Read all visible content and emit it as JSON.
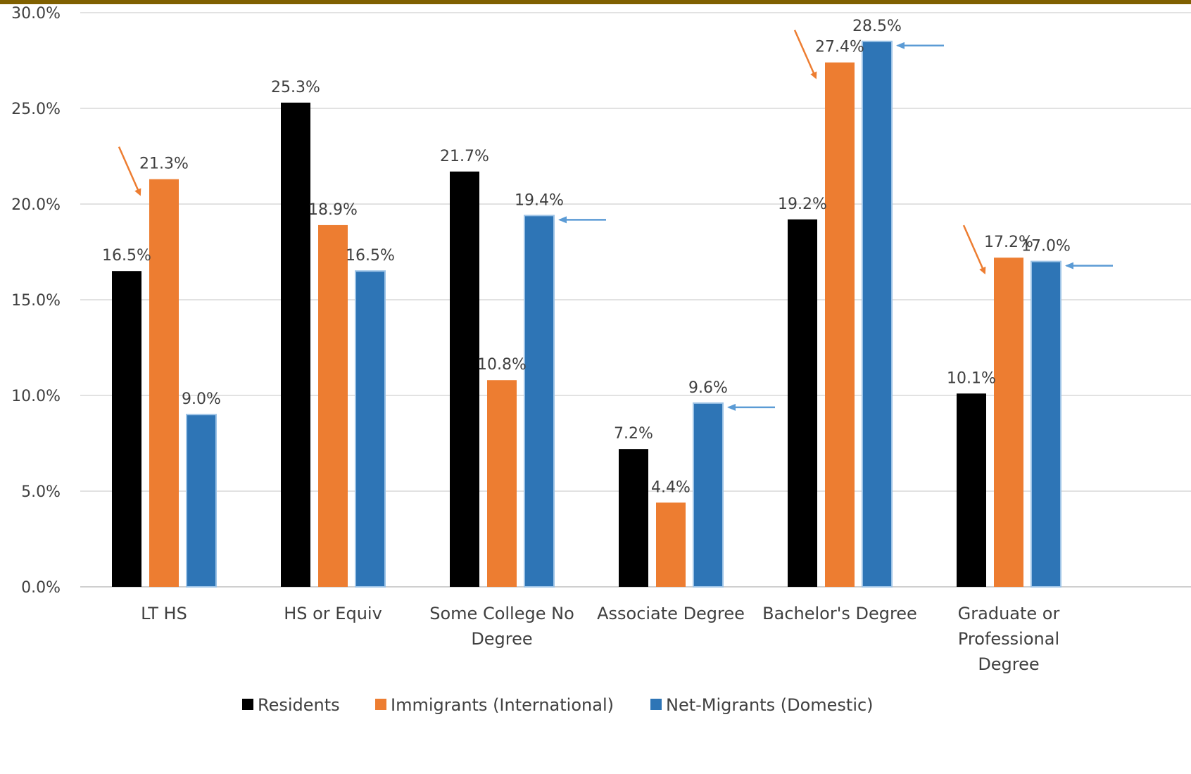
{
  "chart_data": {
    "type": "bar",
    "title": "",
    "xlabel": "",
    "ylabel": "",
    "ylim": [
      0,
      30
    ],
    "y_ticks": [
      "0.0%",
      "5.0%",
      "10.0%",
      "15.0%",
      "20.0%",
      "25.0%",
      "30.0%"
    ],
    "grid": true,
    "legend_position": "bottom",
    "categories": [
      [
        "LT HS"
      ],
      [
        "HS or Equiv"
      ],
      [
        "Some College No",
        "Degree"
      ],
      [
        "Associate Degree"
      ],
      [
        "Bachelor's Degree"
      ],
      [
        "Graduate or",
        "Professional",
        "Degree"
      ]
    ],
    "series": [
      {
        "name": "Residents",
        "color": "#000000",
        "values": [
          16.5,
          25.3,
          21.7,
          7.2,
          19.2,
          10.1
        ],
        "labels": [
          "16.5%",
          "25.3%",
          "21.7%",
          "7.2%",
          "19.2%",
          "10.1%"
        ]
      },
      {
        "name": "Immigrants (International)",
        "color": "#ED7D31",
        "values": [
          21.3,
          18.9,
          10.8,
          4.4,
          27.4,
          17.2
        ],
        "labels": [
          "21.3%",
          "18.9%",
          "10.8%",
          "4.4%",
          "27.4%",
          "17.2%"
        ]
      },
      {
        "name": "Net-Migrants (Domestic)",
        "color": "#2E75B6",
        "values": [
          9.0,
          16.5,
          19.4,
          9.6,
          28.5,
          17.0
        ],
        "labels": [
          "9.0%",
          "16.5%",
          "19.4%",
          "9.6%",
          "28.5%",
          "17.0%"
        ]
      }
    ],
    "annotations": [
      {
        "type": "arrow",
        "color": "#ED7D31",
        "direction": "down-right",
        "target_series": 1,
        "target_category": 0
      },
      {
        "type": "arrow",
        "color": "#ED7D31",
        "direction": "down-right",
        "target_series": 1,
        "target_category": 4
      },
      {
        "type": "arrow",
        "color": "#ED7D31",
        "direction": "down-right",
        "target_series": 1,
        "target_category": 5
      },
      {
        "type": "arrow",
        "color": "#5B9BD5",
        "direction": "left",
        "target_series": 2,
        "target_category": 2
      },
      {
        "type": "arrow",
        "color": "#5B9BD5",
        "direction": "left",
        "target_series": 2,
        "target_category": 3
      },
      {
        "type": "arrow",
        "color": "#5B9BD5",
        "direction": "left",
        "target_series": 2,
        "target_category": 4
      },
      {
        "type": "arrow",
        "color": "#5B9BD5",
        "direction": "left",
        "target_series": 2,
        "target_category": 5
      }
    ],
    "colors": {
      "grid": "#D9D9D9",
      "axis": "#BFBFBF",
      "text": "#404040",
      "top_bar": "#806000"
    }
  }
}
